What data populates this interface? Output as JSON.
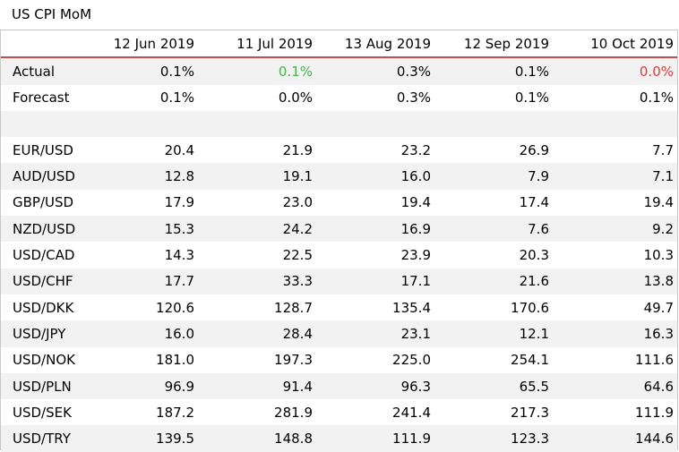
{
  "title": "US CPI MoM",
  "colors": {
    "accent_line": "#c0504d",
    "positive": "#4caf50",
    "negative": "#e0383e",
    "row_shade": "#f2f2f2"
  },
  "header": [
    "",
    "12 Jun 2019",
    "11 Jul 2019",
    "13 Aug 2019",
    "12 Sep 2019",
    "10 Oct 2019"
  ],
  "rows": [
    {
      "label": "Actual",
      "values": [
        "0.1%",
        "0.1%",
        "0.3%",
        "0.1%",
        "0.0%"
      ]
    },
    {
      "label": "Forecast",
      "values": [
        "0.1%",
        "0.0%",
        "0.3%",
        "0.1%",
        "0.1%"
      ]
    },
    {
      "label": "",
      "values": [
        "",
        "",
        "",
        "",
        ""
      ]
    },
    {
      "label": "EUR/USD",
      "values": [
        "20.4",
        "21.9",
        "23.2",
        "26.9",
        "7.7"
      ]
    },
    {
      "label": "AUD/USD",
      "values": [
        "12.8",
        "19.1",
        "16.0",
        "7.9",
        "7.1"
      ]
    },
    {
      "label": "GBP/USD",
      "values": [
        "17.9",
        "23.0",
        "19.4",
        "17.4",
        "19.4"
      ]
    },
    {
      "label": "NZD/USD",
      "values": [
        "15.3",
        "24.2",
        "16.9",
        "7.6",
        "9.2"
      ]
    },
    {
      "label": "USD/CAD",
      "values": [
        "14.3",
        "22.5",
        "23.9",
        "20.3",
        "10.3"
      ]
    },
    {
      "label": "USD/CHF",
      "values": [
        "17.7",
        "33.3",
        "17.1",
        "21.6",
        "13.8"
      ]
    },
    {
      "label": "USD/DKK",
      "values": [
        "120.6",
        "128.7",
        "135.4",
        "170.6",
        "49.7"
      ]
    },
    {
      "label": "USD/JPY",
      "values": [
        "16.0",
        "28.4",
        "23.1",
        "12.1",
        "16.3"
      ]
    },
    {
      "label": "USD/NOK",
      "values": [
        "181.0",
        "197.3",
        "225.0",
        "254.1",
        "111.6"
      ]
    },
    {
      "label": "USD/PLN",
      "values": [
        "96.9",
        "91.4",
        "96.3",
        "65.5",
        "64.6"
      ]
    },
    {
      "label": "USD/SEK",
      "values": [
        "187.2",
        "281.9",
        "241.4",
        "217.3",
        "111.9"
      ]
    },
    {
      "label": "USD/TRY",
      "values": [
        "139.5",
        "148.8",
        "111.9",
        "123.3",
        "144.6"
      ]
    }
  ]
}
